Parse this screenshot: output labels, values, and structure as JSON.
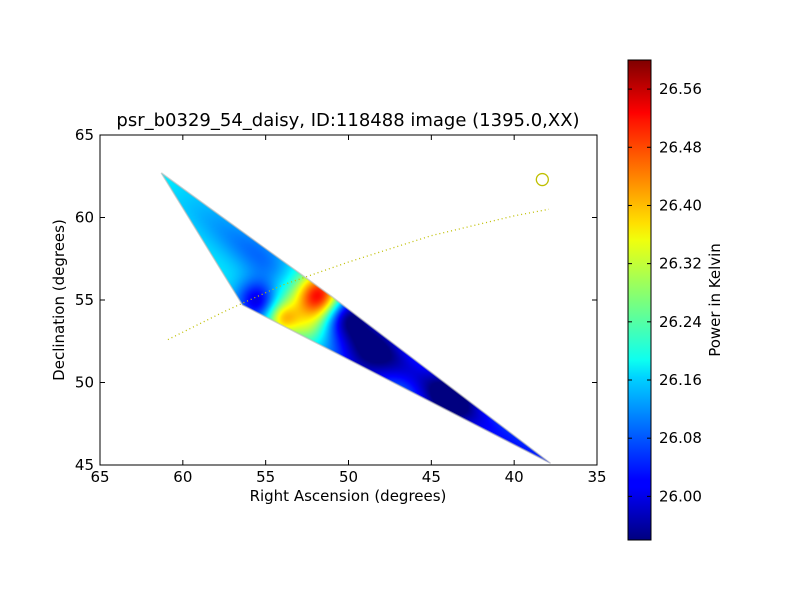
{
  "chart_data": {
    "type": "heatmap",
    "title": "psr_b0329_54_daisy, ID:118488 image (1395.0,XX)",
    "xlabel": "Right Ascension (degrees)",
    "ylabel": "Declination (degrees)",
    "xlim": [
      65,
      35
    ],
    "ylim": [
      45,
      65
    ],
    "x_ticks": [
      65,
      60,
      55,
      50,
      45,
      40,
      35
    ],
    "y_ticks": [
      45,
      50,
      55,
      60,
      65
    ],
    "grid": false,
    "colorbar": {
      "label": "Power in Kelvin",
      "colormap": "jet",
      "range": [
        25.94,
        26.6
      ],
      "ticks": [
        "26.00",
        "26.08",
        "26.16",
        "26.24",
        "26.32",
        "26.40",
        "26.48",
        "26.56"
      ],
      "tick_values": [
        26.0,
        26.08,
        26.16,
        26.24,
        26.32,
        26.4,
        26.48,
        26.56
      ]
    },
    "coverage_polygon": [
      {
        "ra": 61.3,
        "dec": 62.7
      },
      {
        "ra": 56.4,
        "dec": 54.7
      },
      {
        "ra": 37.8,
        "dec": 45.1
      },
      {
        "ra": 51.0,
        "dec": 55.2
      }
    ],
    "background_level": 26.15,
    "features": [
      {
        "ra": 51.8,
        "dec": 55.2,
        "value": 26.58,
        "sigma": 1.0,
        "kind": "peak"
      },
      {
        "ra": 54.0,
        "dec": 53.9,
        "value": 26.34,
        "sigma": 0.7,
        "kind": "peak"
      },
      {
        "ra": 53.5,
        "dec": 55.9,
        "value": 26.26,
        "sigma": 1.2,
        "kind": "peak"
      },
      {
        "ra": 52.5,
        "dec": 53.3,
        "value": 26.24,
        "sigma": 0.8,
        "kind": "peak"
      },
      {
        "ra": 55.5,
        "dec": 55.0,
        "value": 25.97,
        "sigma": 0.9,
        "kind": "trough"
      },
      {
        "ra": 50.0,
        "dec": 54.3,
        "value": 26.03,
        "sigma": 0.9,
        "kind": "trough"
      },
      {
        "ra": 49.0,
        "dec": 51.5,
        "value": 25.98,
        "sigma": 1.5,
        "kind": "trough"
      },
      {
        "ra": 44.0,
        "dec": 49.0,
        "value": 25.99,
        "sigma": 1.3,
        "kind": "trough"
      }
    ],
    "source_marker": {
      "ra": 38.3,
      "dec": 62.3,
      "shape": "circle",
      "color": "#bfbf00"
    },
    "dotted_track": {
      "color": "#bfbf00",
      "points": [
        {
          "ra": 60.9,
          "dec": 52.6
        },
        {
          "ra": 57.5,
          "dec": 54.3
        },
        {
          "ra": 54.0,
          "dec": 55.9
        },
        {
          "ra": 50.0,
          "dec": 57.3
        },
        {
          "ra": 45.0,
          "dec": 58.9
        },
        {
          "ra": 40.0,
          "dec": 60.1
        },
        {
          "ra": 37.9,
          "dec": 60.5
        }
      ]
    }
  }
}
